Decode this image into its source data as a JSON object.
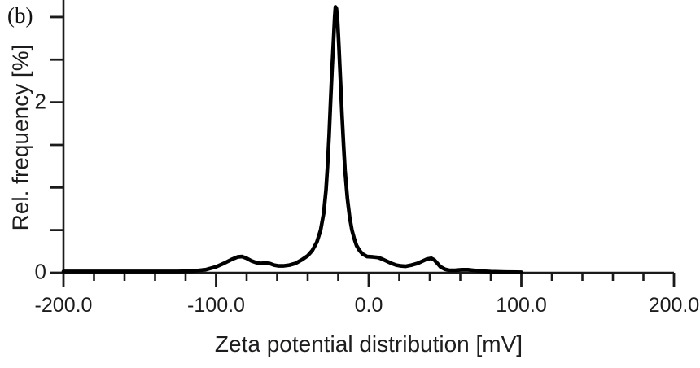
{
  "figure": {
    "panel_label": "(b)"
  },
  "colors": {
    "background": "#ffffff",
    "axis": "#1a1a1a",
    "text": "#1d1d1f",
    "curve": "#000000"
  },
  "chart_data": {
    "type": "line",
    "title": "",
    "xlabel": "Zeta potential distribution [mV]",
    "ylabel": "Rel. frequency [%]",
    "xlim": [
      -200,
      200
    ],
    "ylim": [
      0,
      3.2
    ],
    "grid": false,
    "legend": null,
    "x_minor_tick_step": 20,
    "x_tick_labels": [
      {
        "value": -200,
        "label": "-200.0"
      },
      {
        "value": -100,
        "label": "-100.0"
      },
      {
        "value": 0,
        "label": "0.0"
      },
      {
        "value": 100,
        "label": "100.0"
      },
      {
        "value": 200,
        "label": "200.0"
      }
    ],
    "y_ticks": [
      0,
      0.5,
      1,
      1.5,
      2,
      2.5,
      3
    ],
    "y_tick_labels": [
      {
        "value": 0,
        "label": "0"
      },
      {
        "value": 2,
        "label": "2"
      }
    ],
    "series": [
      {
        "name": "zeta-potential-distribution",
        "color": "#000000",
        "points": [
          [
            -200,
            0.015
          ],
          [
            -170,
            0.015
          ],
          [
            -140,
            0.015
          ],
          [
            -125,
            0.015
          ],
          [
            -115,
            0.02
          ],
          [
            -107,
            0.035
          ],
          [
            -100,
            0.07
          ],
          [
            -95,
            0.11
          ],
          [
            -90,
            0.155
          ],
          [
            -86,
            0.185
          ],
          [
            -83,
            0.19
          ],
          [
            -80,
            0.17
          ],
          [
            -77,
            0.14
          ],
          [
            -74,
            0.12
          ],
          [
            -71,
            0.11
          ],
          [
            -68,
            0.115
          ],
          [
            -65,
            0.11
          ],
          [
            -62,
            0.09
          ],
          [
            -59,
            0.08
          ],
          [
            -56,
            0.08
          ],
          [
            -52,
            0.09
          ],
          [
            -48,
            0.11
          ],
          [
            -44,
            0.15
          ],
          [
            -40,
            0.2
          ],
          [
            -37,
            0.26
          ],
          [
            -34,
            0.36
          ],
          [
            -31.5,
            0.5
          ],
          [
            -29.5,
            0.7
          ],
          [
            -28,
            0.97
          ],
          [
            -27,
            1.25
          ],
          [
            -26,
            1.6
          ],
          [
            -25,
            2.0
          ],
          [
            -24,
            2.4
          ],
          [
            -23,
            2.75
          ],
          [
            -22.3,
            3.0
          ],
          [
            -21.8,
            3.12
          ],
          [
            -21.2,
            3.1
          ],
          [
            -20.4,
            2.95
          ],
          [
            -19.5,
            2.65
          ],
          [
            -18.5,
            2.25
          ],
          [
            -17.5,
            1.85
          ],
          [
            -16.5,
            1.5
          ],
          [
            -15.5,
            1.2
          ],
          [
            -14,
            0.87
          ],
          [
            -12.5,
            0.65
          ],
          [
            -11,
            0.5
          ],
          [
            -9.5,
            0.4
          ],
          [
            -8,
            0.32
          ],
          [
            -6,
            0.26
          ],
          [
            -4,
            0.22
          ],
          [
            -1,
            0.19
          ],
          [
            3,
            0.185
          ],
          [
            6,
            0.18
          ],
          [
            9,
            0.16
          ],
          [
            12,
            0.135
          ],
          [
            15,
            0.11
          ],
          [
            18,
            0.09
          ],
          [
            21,
            0.08
          ],
          [
            24,
            0.075
          ],
          [
            28,
            0.09
          ],
          [
            32,
            0.11
          ],
          [
            35,
            0.135
          ],
          [
            38,
            0.16
          ],
          [
            41,
            0.17
          ],
          [
            43,
            0.15
          ],
          [
            45,
            0.11
          ],
          [
            47,
            0.07
          ],
          [
            50,
            0.04
          ],
          [
            53,
            0.028
          ],
          [
            57,
            0.03
          ],
          [
            61,
            0.035
          ],
          [
            65,
            0.035
          ],
          [
            69,
            0.028
          ],
          [
            74,
            0.018
          ],
          [
            80,
            0.012
          ],
          [
            90,
            0.008
          ],
          [
            100,
            0.006
          ]
        ]
      }
    ]
  }
}
